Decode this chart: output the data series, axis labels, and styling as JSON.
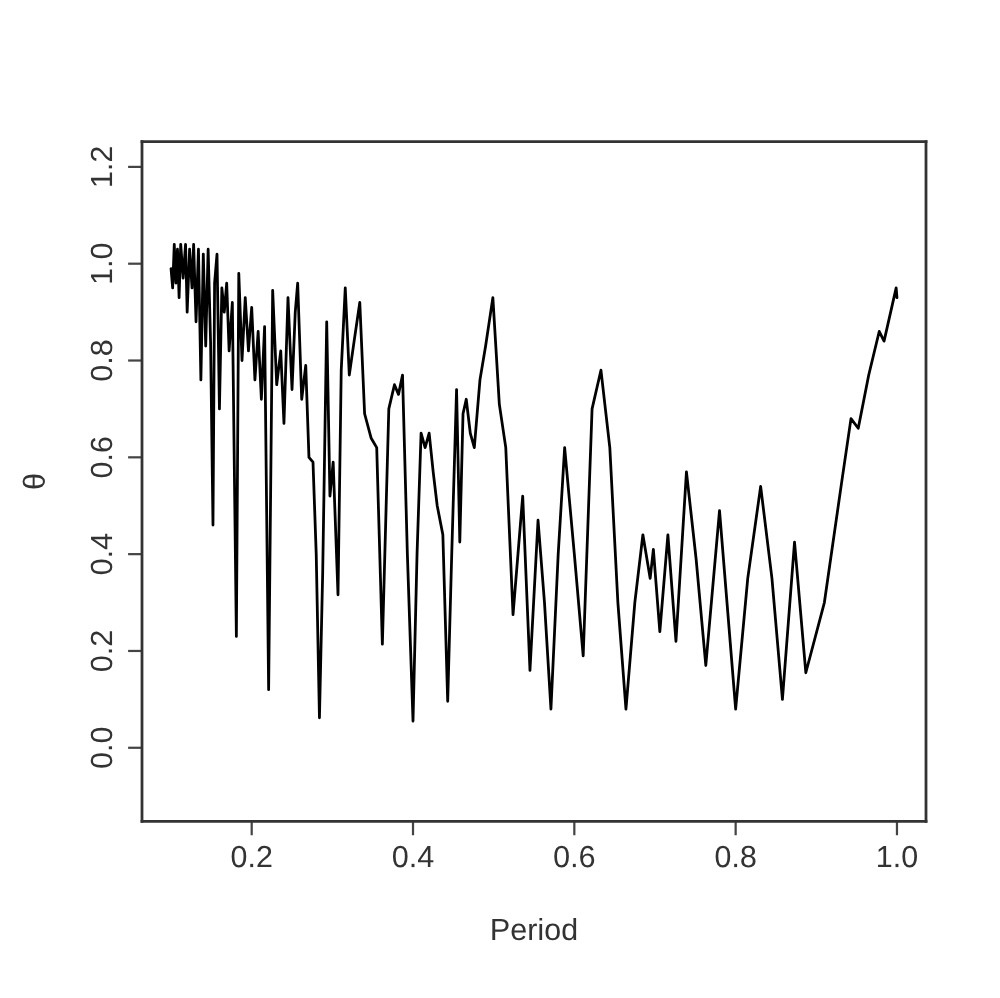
{
  "chart_data": {
    "type": "line",
    "xlabel": "Period",
    "ylabel": "θ",
    "x": [
      0.1,
      0.102,
      0.104,
      0.106,
      0.108,
      0.11,
      0.112,
      0.115,
      0.118,
      0.12,
      0.123,
      0.126,
      0.128,
      0.131,
      0.134,
      0.137,
      0.14,
      0.143,
      0.146,
      0.149,
      0.152,
      0.154,
      0.157,
      0.16,
      0.163,
      0.166,
      0.169,
      0.172,
      0.176,
      0.181,
      0.184,
      0.188,
      0.192,
      0.196,
      0.2,
      0.204,
      0.208,
      0.212,
      0.216,
      0.221,
      0.226,
      0.231,
      0.236,
      0.24,
      0.245,
      0.25,
      0.254,
      0.257,
      0.262,
      0.267,
      0.271,
      0.276,
      0.28,
      0.284,
      0.288,
      0.293,
      0.297,
      0.301,
      0.307,
      0.311,
      0.316,
      0.321,
      0.327,
      0.334,
      0.34,
      0.348,
      0.355,
      0.362,
      0.37,
      0.377,
      0.382,
      0.387,
      0.393,
      0.4,
      0.405,
      0.41,
      0.415,
      0.42,
      0.425,
      0.43,
      0.437,
      0.443,
      0.448,
      0.454,
      0.458,
      0.462,
      0.466,
      0.471,
      0.476,
      0.483,
      0.49,
      0.499,
      0.507,
      0.515,
      0.524,
      0.536,
      0.545,
      0.555,
      0.563,
      0.571,
      0.58,
      0.588,
      0.6,
      0.611,
      0.622,
      0.633,
      0.644,
      0.654,
      0.664,
      0.675,
      0.685,
      0.694,
      0.698,
      0.706,
      0.716,
      0.726,
      0.739,
      0.751,
      0.763,
      0.78,
      0.8,
      0.815,
      0.831,
      0.845,
      0.858,
      0.873,
      0.887,
      0.91,
      0.932,
      0.943,
      0.952,
      0.965,
      0.978,
      0.984,
      0.999,
      1.0
    ],
    "series": [
      {
        "color": "#000000",
        "values": [
          0.99,
          0.95,
          1.04,
          0.96,
          1.03,
          0.93,
          1.04,
          0.97,
          1.04,
          0.9,
          1.03,
          0.95,
          1.04,
          0.88,
          1.03,
          0.76,
          1.02,
          0.83,
          1.03,
          0.84,
          0.46,
          0.96,
          1.02,
          0.7,
          0.95,
          0.9,
          0.96,
          0.82,
          0.92,
          0.23,
          0.98,
          0.8,
          0.93,
          0.82,
          0.91,
          0.76,
          0.86,
          0.72,
          0.87,
          0.12,
          0.945,
          0.75,
          0.82,
          0.67,
          0.93,
          0.74,
          0.9,
          0.96,
          0.72,
          0.79,
          0.6,
          0.59,
          0.4,
          0.062,
          0.36,
          0.88,
          0.52,
          0.59,
          0.316,
          0.78,
          0.95,
          0.77,
          0.84,
          0.92,
          0.69,
          0.64,
          0.62,
          0.214,
          0.7,
          0.75,
          0.73,
          0.77,
          0.4,
          0.055,
          0.4,
          0.65,
          0.62,
          0.65,
          0.57,
          0.5,
          0.44,
          0.096,
          0.4,
          0.74,
          0.425,
          0.69,
          0.72,
          0.65,
          0.62,
          0.76,
          0.83,
          0.93,
          0.71,
          0.62,
          0.275,
          0.52,
          0.16,
          0.47,
          0.3,
          0.08,
          0.4,
          0.62,
          0.4,
          0.19,
          0.7,
          0.78,
          0.62,
          0.3,
          0.08,
          0.3,
          0.44,
          0.35,
          0.41,
          0.24,
          0.44,
          0.22,
          0.57,
          0.39,
          0.17,
          0.49,
          0.08,
          0.35,
          0.54,
          0.35,
          0.1,
          0.425,
          0.155,
          0.3,
          0.555,
          0.68,
          0.66,
          0.77,
          0.86,
          0.84,
          0.95,
          0.93
        ]
      }
    ],
    "xlim": [
      0.064,
      1.036
    ],
    "ylim": [
      -0.152,
      1.252
    ],
    "xticks": [
      0.2,
      0.4,
      0.6,
      0.8,
      {
        "value": 1,
        "label": "1.0"
      }
    ],
    "yticks": [
      {
        "value": 0,
        "label": "0.0"
      },
      0.2,
      0.4,
      0.6,
      0.8,
      {
        "value": 1,
        "label": "1.0"
      },
      1.2
    ],
    "grid": false,
    "legend": false,
    "marker": "none",
    "line_style": "solid"
  }
}
